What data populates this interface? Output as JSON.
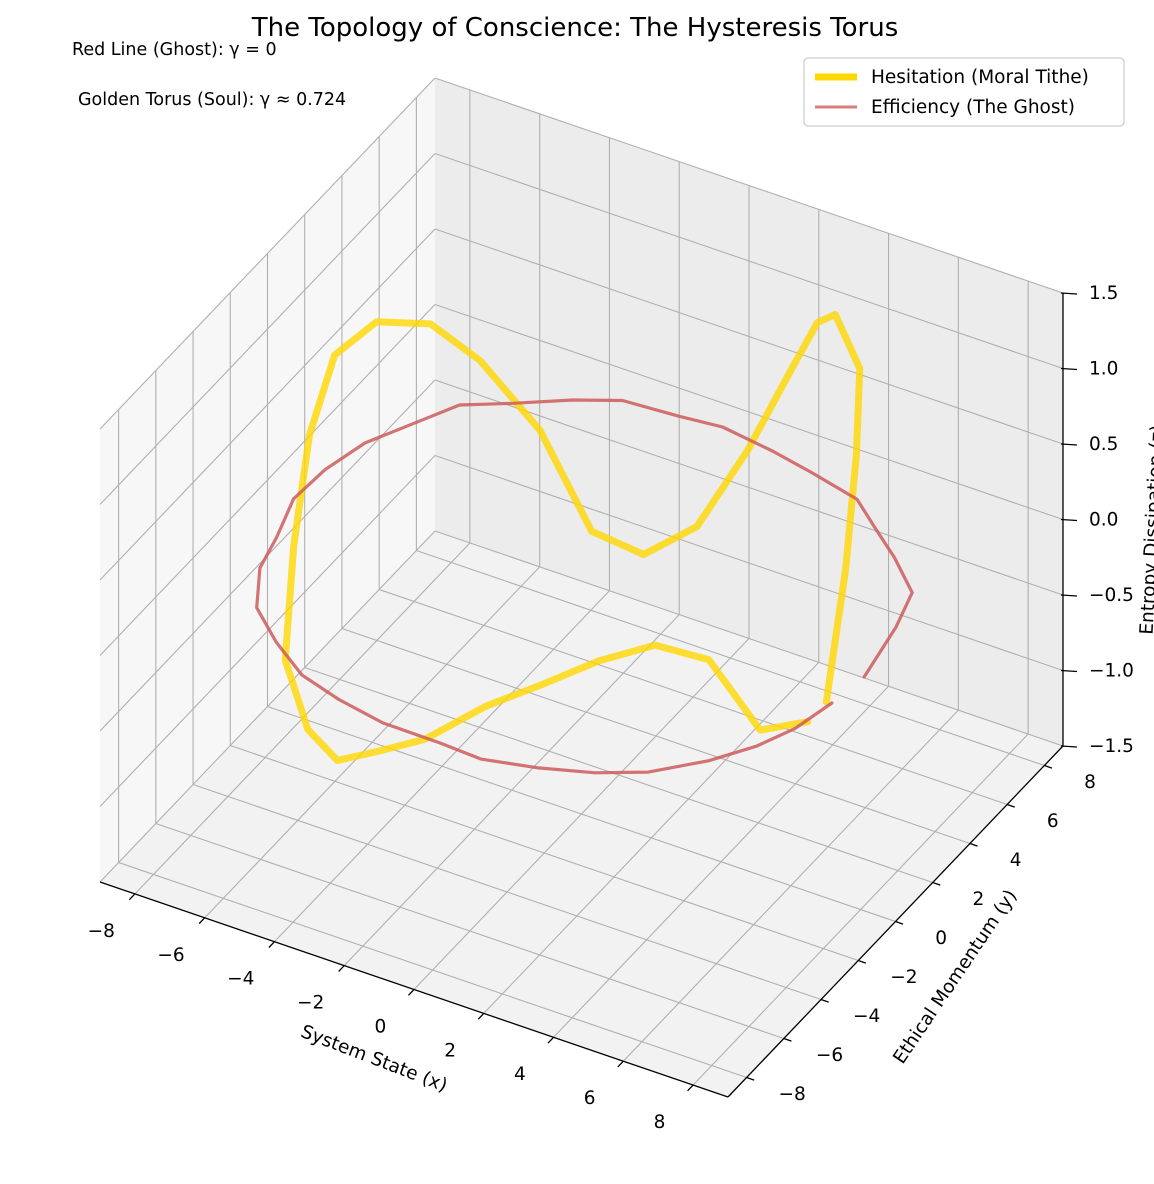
{
  "title": "The Topology of Conscience: The Hysteresis Torus",
  "annotations": [
    "Red Line (Ghost): γ = 0",
    "Golden Torus (Soul): γ ≈ 0.724"
  ],
  "legend": {
    "placement": "upper-right",
    "items": [
      {
        "label": "Hesitation (Moral Tithe)",
        "color": "#FFD700"
      },
      {
        "label": "Efficiency (The Ghost)",
        "color": "#CD5C5C"
      }
    ]
  },
  "colors": {
    "gold": "#FFD700",
    "ghost": "#CD5C5C",
    "pane": "#f2f2f2",
    "grid": "#b0b0b0"
  },
  "chart_data": {
    "type": "line3d",
    "title": "The Topology of Conscience: The Hysteresis Torus",
    "xlabel": "System State (x)",
    "ylabel": "Ethical Momentum (y)",
    "zlabel": "Entropy Dissipation (z)",
    "xlim": [
      -9,
      9
    ],
    "ylim": [
      -9,
      9
    ],
    "zlim": [
      -1.5,
      1.5
    ],
    "xticks": [
      -8,
      -6,
      -4,
      -2,
      0,
      2,
      4,
      6,
      8
    ],
    "yticks": [
      -8,
      -6,
      -4,
      -2,
      0,
      2,
      4,
      6,
      8
    ],
    "zticks": [
      -1.5,
      -1.0,
      -0.5,
      0.0,
      0.5,
      1.0,
      1.5
    ],
    "xtick_labels": [
      "−8",
      "−6",
      "−4",
      "−2",
      "0",
      "2",
      "4",
      "6",
      "8"
    ],
    "ytick_labels": [
      "−8",
      "−6",
      "−4",
      "−2",
      "0",
      "2",
      "4",
      "6",
      "8"
    ],
    "ztick_labels": [
      "−1.5",
      "−1.0",
      "−0.5",
      "0.0",
      "0.5",
      "1.0",
      "1.5"
    ],
    "grid": true,
    "series": [
      {
        "name": "Hesitation (Moral Tithe)",
        "color": "#FFD700",
        "points": [
          [
            6.75,
            0.5,
            -0.29
          ],
          [
            6.41,
            2.18,
            0.35
          ],
          [
            5.87,
            3.76,
            0.85
          ],
          [
            5.3,
            5.02,
            1.22
          ],
          [
            4.15,
            5.86,
            1.38
          ],
          [
            3.34,
            6.42,
            1.19
          ],
          [
            2.25,
            6.94,
            0.7
          ],
          [
            0.95,
            7.14,
            0.06
          ],
          [
            -0.38,
            6.92,
            -0.52
          ],
          [
            -1.61,
            6.36,
            -0.73
          ],
          [
            -2.62,
            5.46,
            -0.54
          ],
          [
            -3.77,
            4.83,
            0.12
          ],
          [
            -4.82,
            3.58,
            0.66
          ],
          [
            -5.52,
            2.24,
            1.02
          ],
          [
            -6.23,
            0.67,
            1.18
          ],
          [
            -6.7,
            -0.7,
            1.1
          ],
          [
            -6.72,
            -2.02,
            0.74
          ],
          [
            -6.31,
            -3.63,
            0.25
          ],
          [
            -5.75,
            -5.14,
            -0.27
          ],
          [
            -4.73,
            -5.84,
            -0.56
          ],
          [
            -3.39,
            -6.76,
            -0.54
          ],
          [
            -2.12,
            -7.0,
            -0.35
          ],
          [
            -0.63,
            -7.24,
            -0.12
          ],
          [
            0.97,
            -6.97,
            0.19
          ],
          [
            2.35,
            -6.45,
            0.38
          ],
          [
            3.53,
            -5.71,
            0.53
          ],
          [
            4.74,
            -4.93,
            0.63
          ],
          [
            5.64,
            -3.73,
            0.45
          ],
          [
            6.52,
            -2.62,
            -0.09
          ],
          [
            6.75,
            -0.5,
            -0.29
          ]
        ]
      },
      {
        "name": "Efficiency (The Ghost)",
        "color": "#CD5C5C",
        "points": [
          [
            7.95,
            0.28,
            0
          ],
          [
            7.61,
            2.63,
            0
          ],
          [
            7.25,
            4.18,
            0
          ],
          [
            6.14,
            5.3,
            0
          ],
          [
            5.1,
            6.2,
            0
          ],
          [
            4.13,
            7.06,
            0
          ],
          [
            2.59,
            7.49,
            0
          ],
          [
            1.31,
            7.8,
            0
          ],
          [
            -0.26,
            8.07,
            0
          ],
          [
            -1.43,
            7.91,
            0
          ],
          [
            -2.97,
            7.77,
            0
          ],
          [
            -4.06,
            7.13,
            0
          ],
          [
            -5.28,
            6.21,
            0
          ],
          [
            -6.4,
            5.44,
            0
          ],
          [
            -7.0,
            4.14,
            0
          ],
          [
            -7.66,
            2.72,
            0
          ],
          [
            -7.97,
            1.16,
            0
          ],
          [
            -8.05,
            -0.38,
            0
          ],
          [
            -7.62,
            -2.1,
            0
          ],
          [
            -7.35,
            -3.5,
            0
          ],
          [
            -6.6,
            -5.08,
            0
          ],
          [
            -5.47,
            -6.15,
            0
          ],
          [
            -4.24,
            -7.08,
            0
          ],
          [
            -2.93,
            -7.54,
            0
          ],
          [
            -1.5,
            -7.86,
            0
          ],
          [
            0.16,
            -7.88,
            0
          ],
          [
            1.38,
            -7.96,
            0
          ],
          [
            2.79,
            -7.54,
            0
          ],
          [
            4.12,
            -6.98,
            0
          ],
          [
            5.25,
            -6.25,
            0
          ],
          [
            6.32,
            -5.01,
            0
          ],
          [
            7.05,
            -3.82,
            0
          ],
          [
            7.52,
            -2.63,
            0
          ],
          [
            7.79,
            -1.15,
            0
          ]
        ]
      }
    ]
  }
}
